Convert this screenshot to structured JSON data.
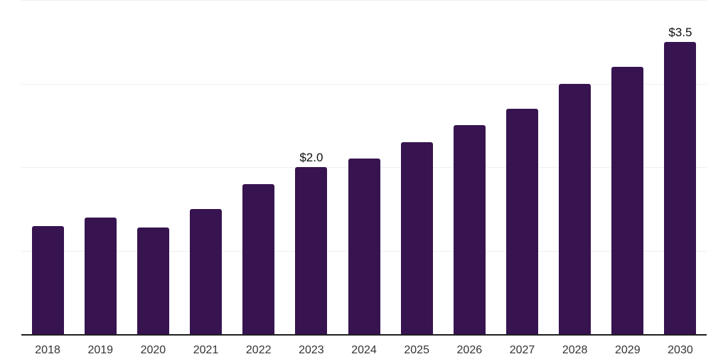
{
  "chart_data": {
    "type": "bar",
    "title": "",
    "xlabel": "",
    "ylabel": "",
    "categories": [
      "2018",
      "2019",
      "2020",
      "2021",
      "2022",
      "2023",
      "2024",
      "2025",
      "2026",
      "2027",
      "2028",
      "2029",
      "2030"
    ],
    "values": [
      1.29,
      1.4,
      1.28,
      1.5,
      1.8,
      2.0,
      2.1,
      2.3,
      2.5,
      2.7,
      3.0,
      3.2,
      3.5
    ],
    "bar_labels": [
      "",
      "",
      "",
      "",
      "",
      "$2.0",
      "",
      "",
      "",
      "",
      "",
      "",
      "$3.5"
    ],
    "ylim": [
      0,
      4
    ],
    "gridline_values": [
      1,
      2,
      3,
      4
    ],
    "grid": "horizontal-only",
    "legend_position": "none",
    "colors": {
      "bar": "#371450",
      "axis_line": "#1f1f1f",
      "gridline": "#efefef",
      "bar_label_text": "#0d0d0d",
      "tick_label_text": "#333333",
      "background": "#ffffff"
    }
  }
}
